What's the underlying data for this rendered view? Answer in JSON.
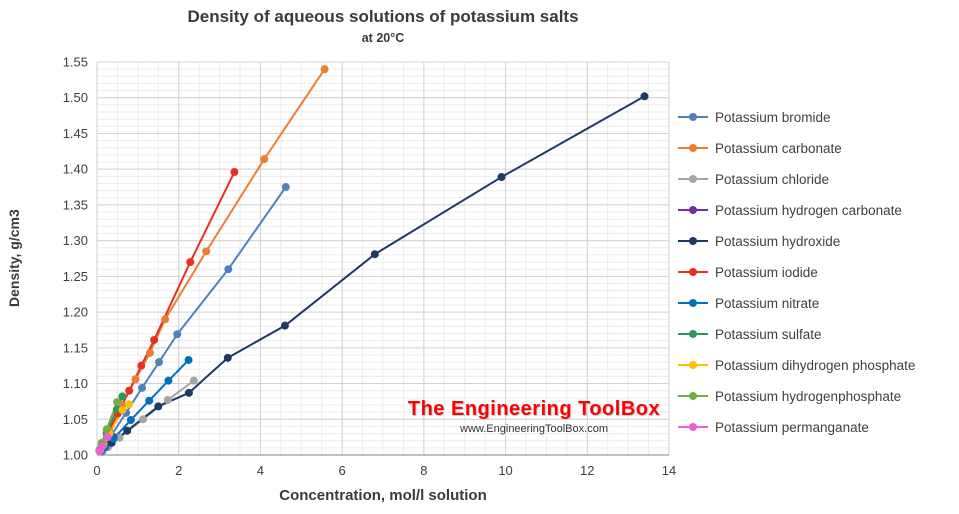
{
  "page": {
    "title": "Density of aqueous solutions of potassium salts",
    "subtitle": "at 20°C"
  },
  "watermark": {
    "line1": "The Engineering ToolBox",
    "line2": "www.EngineeringToolBox.com",
    "color": "#ff0000"
  },
  "chart_data": {
    "type": "line",
    "title": "Density of aqueous solutions of potassium salts",
    "subtitle": "at 20°C",
    "xlabel": "Concentration, mol/l solution",
    "ylabel": "Density, g/cm3",
    "xlim": [
      0,
      14
    ],
    "ylim": [
      1.0,
      1.55
    ],
    "x_ticks": [
      0,
      2,
      4,
      6,
      8,
      10,
      12,
      14
    ],
    "y_ticks": [
      1.0,
      1.05,
      1.1,
      1.15,
      1.2,
      1.25,
      1.3,
      1.35,
      1.4,
      1.45,
      1.5,
      1.55
    ],
    "x_minor_step": 0.5,
    "y_minor_step": 0.01,
    "grid": true,
    "legend_position": "right",
    "colors": {
      "minor_grid": "#ececec",
      "major_grid": "#d2d2d2",
      "axis_line": "#9c9c9c"
    },
    "series": [
      {
        "name": "Potassium bromide",
        "color": "#4f81bd",
        "x": [
          0.084,
          0.169,
          0.345,
          0.712,
          1.103,
          1.519,
          1.964,
          3.213,
          4.62
        ],
        "y": [
          1.005,
          1.012,
          1.027,
          1.059,
          1.094,
          1.13,
          1.169,
          1.26,
          1.375
        ]
      },
      {
        "name": "Potassium carbonate",
        "color": "#ed7d31",
        "x": [
          0.073,
          0.146,
          0.296,
          0.609,
          0.943,
          1.295,
          1.668,
          2.674,
          4.093,
          5.571
        ],
        "y": [
          1.007,
          1.016,
          1.034,
          1.07,
          1.106,
          1.143,
          1.19,
          1.285,
          1.414,
          1.54
        ]
      },
      {
        "name": "Potassium chloride",
        "color": "#a5a5a5",
        "x": [
          0.135,
          0.271,
          0.549,
          1.127,
          1.733,
          2.37
        ],
        "y": [
          1.005,
          1.011,
          1.024,
          1.05,
          1.077,
          1.104
        ]
      },
      {
        "name": "Potassium hydrogen carbonate",
        "color": "#7030a0",
        "x": [
          0.1,
          0.202,
          0.409
        ],
        "y": [
          1.005,
          1.011,
          1.025
        ]
      },
      {
        "name": "Potassium hydroxide",
        "color": "#203864",
        "x": [
          0.36,
          0.74,
          1.5,
          2.25,
          3.2,
          4.6,
          6.8,
          9.9,
          13.4
        ],
        "y": [
          1.017,
          1.034,
          1.068,
          1.087,
          1.136,
          1.181,
          1.281,
          1.389,
          1.502
        ]
      },
      {
        "name": "Potassium iodide",
        "color": "#e8301f",
        "x": [
          0.061,
          0.122,
          0.248,
          0.51,
          0.788,
          1.084,
          1.399,
          2.282,
          3.363
        ],
        "y": [
          1.006,
          1.013,
          1.028,
          1.058,
          1.09,
          1.125,
          1.161,
          1.27,
          1.396
        ]
      },
      {
        "name": "Potassium nitrate",
        "color": "#0070c0",
        "x": [
          0.099,
          0.2,
          0.405,
          0.83,
          1.278,
          1.748,
          2.241
        ],
        "y": [
          1.005,
          1.011,
          1.023,
          1.049,
          1.076,
          1.104,
          1.133
        ]
      },
      {
        "name": "Potassium sulfate",
        "color": "#2e9658",
        "x": [
          0.058,
          0.116,
          0.237,
          0.488,
          0.621
        ],
        "y": [
          1.006,
          1.014,
          1.031,
          1.064,
          1.082
        ]
      },
      {
        "name": "Potassium dihydrogen phosphate",
        "color": "#ffc000",
        "x": [
          0.074,
          0.149,
          0.303,
          0.625,
          0.787
        ],
        "y": [
          1.006,
          1.014,
          1.03,
          1.063,
          1.071
        ]
      },
      {
        "name": "Potassium hydrogenphosphate",
        "color": "#70ad47",
        "x": [
          0.058,
          0.117,
          0.238,
          0.493
        ],
        "y": [
          1.007,
          1.017,
          1.036,
          1.074
        ]
      },
      {
        "name": "Potassium permanganate",
        "color": "#ef5fd2",
        "x": [
          0.064,
          0.128,
          0.259
        ],
        "y": [
          1.005,
          1.012,
          1.025
        ]
      }
    ]
  }
}
